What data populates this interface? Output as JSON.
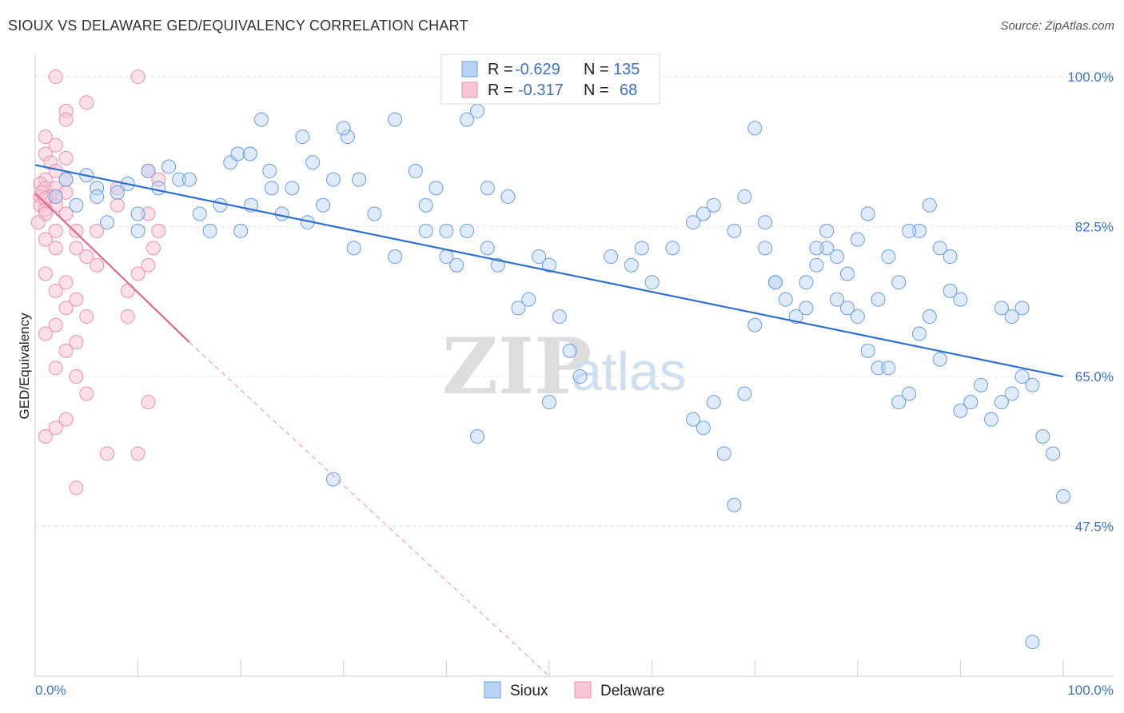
{
  "header": {
    "title": "SIOUX VS DELAWARE GED/EQUIVALENCY CORRELATION CHART",
    "source": "Source: ZipAtlas.com"
  },
  "watermark": {
    "zip": "ZIP",
    "atlas": "atlas"
  },
  "legend": {
    "rows": [
      {
        "r_label": "R =",
        "r_value": "-0.629",
        "n_label": "N =",
        "n_value": "135"
      },
      {
        "r_label": "R =",
        "r_value": "-0.317",
        "n_label": "N =",
        "n_value": "68"
      }
    ]
  },
  "chart_data": {
    "type": "scatter",
    "title": "SIOUX VS DELAWARE GED/EQUIVALENCY CORRELATION CHART",
    "xlabel": "",
    "ylabel": "GED/Equivalency",
    "xlim": [
      0,
      100
    ],
    "ylim": [
      30,
      101.5
    ],
    "x_tick_labels": [
      "0.0%",
      "100.0%"
    ],
    "y_ticks": [
      {
        "value": 47.5,
        "label": "47.5%"
      },
      {
        "value": 65.0,
        "label": "65.0%"
      },
      {
        "value": 82.5,
        "label": "82.5%"
      },
      {
        "value": 100.0,
        "label": "100.0%"
      }
    ],
    "colors": {
      "sioux": "#6a9de0",
      "sioux_fill": "#b9d3f4",
      "sioux_line": "#2f6fd0",
      "delaware": "#ee8fb0",
      "delaware_fill": "#f8c6d6",
      "delaware_line": "#e0668f"
    },
    "series": [
      {
        "name": "Sioux",
        "r": -0.629,
        "n": 135,
        "trend": {
          "x": [
            0,
            100
          ],
          "y": [
            89.7,
            65.0
          ]
        },
        "points": [
          [
            3,
            88
          ],
          [
            6,
            87
          ],
          [
            8,
            86.5
          ],
          [
            4,
            85
          ],
          [
            10,
            84
          ],
          [
            12,
            87
          ],
          [
            14,
            88
          ],
          [
            5,
            88.5
          ],
          [
            9,
            87.5
          ],
          [
            11,
            89
          ],
          [
            13,
            89.5
          ],
          [
            15,
            88
          ],
          [
            16,
            84
          ],
          [
            17,
            82
          ],
          [
            18,
            85
          ],
          [
            19,
            90
          ],
          [
            7,
            83
          ],
          [
            2,
            86
          ],
          [
            6,
            86
          ],
          [
            10,
            82
          ],
          [
            19.7,
            91
          ],
          [
            20.9,
            91
          ],
          [
            22,
            95
          ],
          [
            22.8,
            89
          ],
          [
            23,
            87
          ],
          [
            26,
            93
          ],
          [
            27,
            90
          ],
          [
            29,
            88
          ],
          [
            30.4,
            93
          ],
          [
            31.5,
            88
          ],
          [
            20,
            82
          ],
          [
            21,
            85
          ],
          [
            24,
            84
          ],
          [
            25,
            87
          ],
          [
            28,
            85
          ],
          [
            26.5,
            83
          ],
          [
            31,
            80
          ],
          [
            33,
            84
          ],
          [
            35,
            79
          ],
          [
            37,
            89
          ],
          [
            38,
            85
          ],
          [
            39,
            87
          ],
          [
            40,
            79
          ],
          [
            41,
            78
          ],
          [
            42,
            95
          ],
          [
            43,
            96
          ],
          [
            35,
            95
          ],
          [
            30,
            94
          ],
          [
            44,
            87
          ],
          [
            46,
            86
          ],
          [
            38,
            82
          ],
          [
            40,
            82
          ],
          [
            42,
            82
          ],
          [
            44,
            80
          ],
          [
            45,
            78
          ],
          [
            47,
            73
          ],
          [
            49,
            79
          ],
          [
            50,
            78
          ],
          [
            48,
            74
          ],
          [
            51,
            72
          ],
          [
            43,
            58
          ],
          [
            29,
            53
          ],
          [
            52,
            68
          ],
          [
            53,
            65
          ],
          [
            50,
            62
          ],
          [
            59,
            80
          ],
          [
            56,
            79
          ],
          [
            58,
            78
          ],
          [
            62,
            80
          ],
          [
            60,
            76
          ],
          [
            64,
            83
          ],
          [
            66,
            85
          ],
          [
            65,
            84
          ],
          [
            68,
            82
          ],
          [
            69,
            86
          ],
          [
            70,
            94
          ],
          [
            71,
            80
          ],
          [
            72,
            76
          ],
          [
            73,
            74
          ],
          [
            74,
            72
          ],
          [
            75,
            76
          ],
          [
            76,
            78
          ],
          [
            77,
            80
          ],
          [
            78,
            74
          ],
          [
            79,
            73
          ],
          [
            80,
            72
          ],
          [
            81,
            68
          ],
          [
            82,
            66
          ],
          [
            83,
            66
          ],
          [
            84,
            62
          ],
          [
            85,
            63
          ],
          [
            86,
            70
          ],
          [
            87,
            72
          ],
          [
            88,
            67
          ],
          [
            89,
            75
          ],
          [
            90,
            61
          ],
          [
            91,
            62
          ],
          [
            92,
            64
          ],
          [
            93,
            60
          ],
          [
            94,
            62
          ],
          [
            95,
            63
          ],
          [
            96,
            65
          ],
          [
            97,
            64
          ],
          [
            98,
            58
          ],
          [
            99,
            56
          ],
          [
            100,
            51
          ],
          [
            97,
            34
          ],
          [
            96,
            73
          ],
          [
            95,
            72
          ],
          [
            94,
            73
          ],
          [
            90,
            74
          ],
          [
            89,
            79
          ],
          [
            88,
            80
          ],
          [
            87,
            85
          ],
          [
            86,
            82
          ],
          [
            85,
            82
          ],
          [
            84,
            76
          ],
          [
            83,
            79
          ],
          [
            82,
            74
          ],
          [
            81,
            84
          ],
          [
            80,
            81
          ],
          [
            79,
            77
          ],
          [
            78,
            79
          ],
          [
            77,
            82
          ],
          [
            76,
            80
          ],
          [
            75,
            73
          ],
          [
            72,
            76
          ],
          [
            71,
            83
          ],
          [
            70,
            71
          ],
          [
            69,
            63
          ],
          [
            68,
            50
          ],
          [
            67,
            56
          ],
          [
            66,
            62
          ],
          [
            65,
            59
          ],
          [
            64,
            60
          ]
        ]
      },
      {
        "name": "Delaware",
        "r": -0.317,
        "n": 68,
        "trend": {
          "x": [
            0,
            15
          ],
          "y": [
            86.4,
            69.0
          ]
        },
        "trend_dashed": {
          "x": [
            15,
            50
          ],
          "y": [
            69.0,
            30.0
          ]
        },
        "points": [
          [
            2,
            100
          ],
          [
            10,
            100
          ],
          [
            5,
            97
          ],
          [
            3,
            96
          ],
          [
            3,
            95
          ],
          [
            1,
            93
          ],
          [
            2,
            92
          ],
          [
            1,
            91
          ],
          [
            3,
            90.5
          ],
          [
            1.5,
            90
          ],
          [
            2,
            89
          ],
          [
            1,
            88
          ],
          [
            0.5,
            87.5
          ],
          [
            1,
            87
          ],
          [
            2,
            87
          ],
          [
            3,
            86.5
          ],
          [
            1.5,
            86
          ],
          [
            0.5,
            86
          ],
          [
            1,
            85.5
          ],
          [
            2,
            85
          ],
          [
            0.5,
            85
          ],
          [
            1,
            84.5
          ],
          [
            3,
            84
          ],
          [
            1,
            84
          ],
          [
            0.3,
            83
          ],
          [
            2,
            82
          ],
          [
            4,
            82
          ],
          [
            6,
            82
          ],
          [
            1,
            81
          ],
          [
            2,
            80
          ],
          [
            4,
            80
          ],
          [
            5,
            79
          ],
          [
            6,
            78
          ],
          [
            1,
            77
          ],
          [
            3,
            76
          ],
          [
            2,
            75
          ],
          [
            4,
            74
          ],
          [
            3,
            73
          ],
          [
            5,
            72
          ],
          [
            2,
            71
          ],
          [
            1,
            70
          ],
          [
            4,
            69
          ],
          [
            3,
            68
          ],
          [
            2,
            66
          ],
          [
            4,
            65
          ],
          [
            5,
            63
          ],
          [
            3,
            60
          ],
          [
            2,
            59
          ],
          [
            1,
            58
          ],
          [
            7,
            56
          ],
          [
            10,
            56
          ],
          [
            4,
            52
          ],
          [
            9,
            75
          ],
          [
            10,
            77
          ],
          [
            11,
            78
          ],
          [
            11.5,
            80
          ],
          [
            12,
            82
          ],
          [
            11,
            84
          ],
          [
            8,
            85
          ],
          [
            8,
            87
          ],
          [
            11,
            89
          ],
          [
            12,
            88
          ],
          [
            9,
            72
          ],
          [
            11,
            62
          ],
          [
            3,
            88
          ],
          [
            2,
            86
          ],
          [
            0.6,
            86.5
          ],
          [
            1,
            85.8
          ]
        ]
      }
    ],
    "legend": [
      "Sioux",
      "Delaware"
    ]
  }
}
